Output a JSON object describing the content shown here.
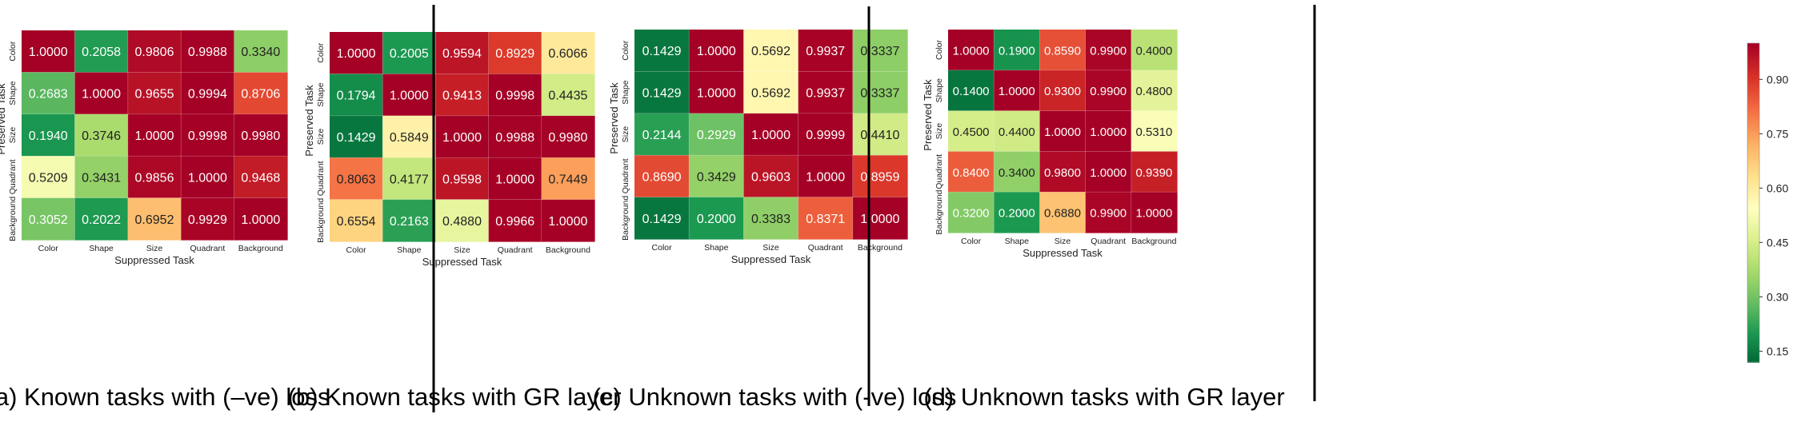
{
  "colorbar": {
    "ticks": [
      0.15,
      0.3,
      0.45,
      0.6,
      0.75,
      0.9
    ],
    "tick_labels": [
      "0.15",
      "0.30",
      "0.45",
      "0.60",
      "0.75",
      "0.90"
    ],
    "vmin": 0.12,
    "vmax": 1.0
  },
  "chart_data": [
    {
      "type": "heatmap",
      "caption": "(a) Known tasks with (–ve) loss",
      "xlabel": "Suppressed Task",
      "ylabel": "Preserved Task",
      "x_categories": [
        "Color",
        "Shape",
        "Size",
        "Quadrant",
        "Background"
      ],
      "y_categories": [
        "Color",
        "Shape",
        "Size",
        "Quadrant",
        "Background"
      ],
      "values": [
        [
          "1.0000",
          "0.2058",
          "0.9806",
          "0.9988",
          "0.3340"
        ],
        [
          "0.2683",
          "1.0000",
          "0.9655",
          "0.9994",
          "0.8706"
        ],
        [
          "0.1940",
          "0.3746",
          "1.0000",
          "0.9998",
          "0.9980"
        ],
        [
          "0.5209",
          "0.3431",
          "0.9856",
          "1.0000",
          "0.9468"
        ],
        [
          "0.3052",
          "0.2022",
          "0.6952",
          "0.9929",
          "1.0000"
        ]
      ]
    },
    {
      "type": "heatmap",
      "caption": "(b) Known tasks with GR layer",
      "xlabel": "Suppressed Task",
      "ylabel": "Preserved Task",
      "x_categories": [
        "Color",
        "Shape",
        "Size",
        "Quadrant",
        "Background"
      ],
      "y_categories": [
        "Color",
        "Shape",
        "Size",
        "Quadrant",
        "Background"
      ],
      "values": [
        [
          "1.0000",
          "0.2005",
          "0.9594",
          "0.8929",
          "0.6066"
        ],
        [
          "0.1794",
          "1.0000",
          "0.9413",
          "0.9998",
          "0.4435"
        ],
        [
          "0.1429",
          "0.5849",
          "1.0000",
          "0.9988",
          "0.9980"
        ],
        [
          "0.8063",
          "0.4177",
          "0.9598",
          "1.0000",
          "0.7449"
        ],
        [
          "0.6554",
          "0.2163",
          "0.4880",
          "0.9966",
          "1.0000"
        ]
      ]
    },
    {
      "type": "heatmap",
      "caption": "(c) Unknown tasks with (-ve) loss",
      "xlabel": "Suppressed Task",
      "ylabel": "Preserved Task",
      "x_categories": [
        "Color",
        "Shape",
        "Size",
        "Quadrant",
        "Background"
      ],
      "y_categories": [
        "Color",
        "Shape",
        "Size",
        "Quadrant",
        "Background"
      ],
      "values": [
        [
          "0.1429",
          "1.0000",
          "0.5692",
          "0.9937",
          "0.3337"
        ],
        [
          "0.1429",
          "1.0000",
          "0.5692",
          "0.9937",
          "0.3337"
        ],
        [
          "0.2144",
          "0.2929",
          "1.0000",
          "0.9999",
          "0.4410"
        ],
        [
          "0.8690",
          "0.3429",
          "0.9603",
          "1.0000",
          "0.8959"
        ],
        [
          "0.1429",
          "0.2000",
          "0.3383",
          "0.8371",
          "1.0000"
        ]
      ]
    },
    {
      "type": "heatmap",
      "caption": "(d) Unknown tasks with GR layer",
      "xlabel": "Suppressed Task",
      "ylabel": "Preserved Task",
      "x_categories": [
        "Color",
        "Shape",
        "Size",
        "Quadrant",
        "Background"
      ],
      "y_categories": [
        "Color",
        "Shape",
        "Size",
        "Quadrant",
        "Background"
      ],
      "values": [
        [
          "1.0000",
          "0.1900",
          "0.8590",
          "0.9900",
          "0.4000"
        ],
        [
          "0.1400",
          "1.0000",
          "0.9300",
          "0.9900",
          "0.4800"
        ],
        [
          "0.4500",
          "0.4400",
          "1.0000",
          "1.0000",
          "0.5310"
        ],
        [
          "0.8400",
          "0.3400",
          "0.9800",
          "1.0000",
          "0.9390"
        ],
        [
          "0.3200",
          "0.2000",
          "0.6880",
          "0.9900",
          "1.0000"
        ]
      ]
    }
  ]
}
